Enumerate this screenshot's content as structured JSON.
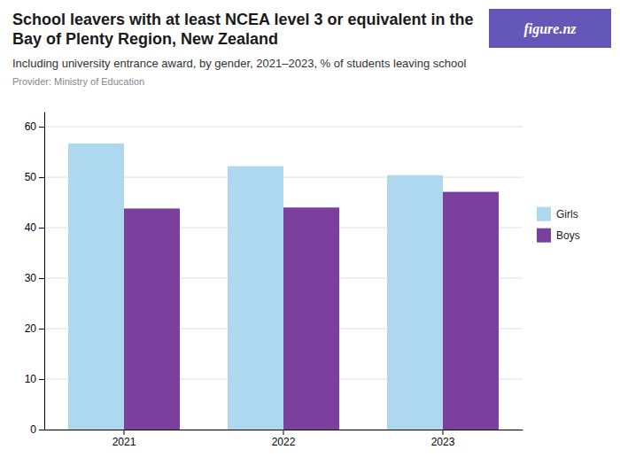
{
  "chart_data": {
    "type": "bar",
    "title": "School leavers with at least NCEA level 3 or equivalent in the Bay of Plenty Region, New Zealand",
    "subtitle": "Including university entrance award, by gender, 2021–2023, % of students leaving school",
    "annotations": [
      "Provider: Ministry of Education",
      "figure.nz"
    ],
    "categories": [
      "2021",
      "2022",
      "2023"
    ],
    "series": [
      {
        "name": "Girls",
        "color": "#add8f0",
        "values": [
          56.7,
          52.2,
          50.4
        ]
      },
      {
        "name": "Boys",
        "color": "#7b3f9e",
        "values": [
          43.8,
          44.0,
          47.1
        ]
      }
    ],
    "ylim": [
      0,
      63
    ],
    "yticks": [
      0,
      10,
      20,
      30,
      40,
      50,
      60
    ],
    "grid": true,
    "legend": "right"
  }
}
